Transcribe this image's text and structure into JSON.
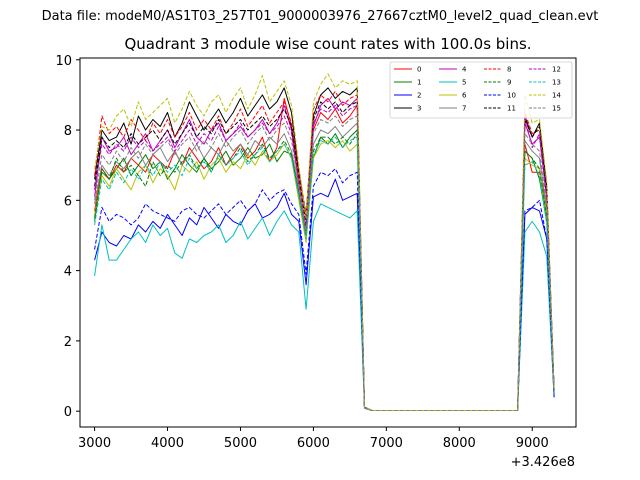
{
  "suptitle": "Data file: modeM0/AS1T03_257T01_9000003976_27667cztM0_level2_quad_clean.evt",
  "offset_text": "+3.426e8",
  "chart_data": {
    "type": "line",
    "title": "Quadrant 3 module wise count rates with 100.0s bins.",
    "xlabel": "",
    "ylabel": "",
    "x_offset": 342600000,
    "xlim": [
      2800,
      9600
    ],
    "ylim": [
      -0.45,
      10.05
    ],
    "xticks": [
      3000,
      4000,
      5000,
      6000,
      7000,
      8000,
      9000
    ],
    "yticks": [
      0,
      2,
      4,
      6,
      8,
      10
    ],
    "grid": false,
    "legend_position": "top-right",
    "x": [
      3000,
      3100,
      3200,
      3300,
      3400,
      3500,
      3600,
      3700,
      3800,
      3900,
      4000,
      4100,
      4200,
      4300,
      4400,
      4500,
      4600,
      4700,
      4800,
      4900,
      5000,
      5100,
      5200,
      5300,
      5400,
      5500,
      5600,
      5700,
      5800,
      5900,
      6000,
      6100,
      6200,
      6300,
      6400,
      6500,
      6600,
      6700,
      6800,
      6900,
      7000,
      7100,
      7200,
      7300,
      7400,
      7500,
      7600,
      7700,
      7800,
      7900,
      8000,
      8100,
      8200,
      8300,
      8400,
      8500,
      8600,
      8700,
      8800,
      8900,
      9000,
      9100,
      9200,
      9300
    ],
    "series": [
      {
        "name": "0",
        "color": "#ff0000",
        "dash": false,
        "values": [
          5.7,
          6.9,
          6.6,
          7.0,
          6.8,
          7.2,
          7.0,
          6.8,
          7.3,
          7.1,
          6.9,
          7.4,
          7.0,
          7.5,
          7.2,
          6.9,
          7.1,
          7.5,
          7.0,
          7.3,
          7.6,
          7.2,
          7.4,
          7.8,
          7.1,
          7.5,
          8.9,
          8.1,
          6.5,
          5.2,
          8.0,
          8.5,
          8.3,
          8.6,
          8.2,
          8.4,
          8.7,
          0.12,
          0.02,
          0.02,
          0.02,
          0.02,
          0.02,
          0.02,
          0.02,
          0.02,
          0.02,
          0.02,
          0.02,
          0.02,
          0.02,
          0.02,
          0.02,
          0.02,
          0.02,
          0.02,
          0.02,
          0.02,
          0.02,
          7.6,
          6.8,
          6.8,
          5.8,
          0.5
        ]
      },
      {
        "name": "1",
        "color": "#008000",
        "dash": false,
        "values": [
          5.4,
          6.8,
          6.6,
          6.9,
          7.2,
          6.7,
          7.0,
          7.3,
          6.9,
          7.1,
          6.6,
          6.9,
          7.3,
          7.0,
          6.8,
          7.2,
          6.9,
          7.1,
          7.4,
          7.0,
          7.2,
          7.5,
          7.2,
          7.3,
          7.6,
          7.1,
          7.4,
          7.3,
          6.2,
          5.0,
          7.2,
          7.8,
          7.6,
          7.9,
          7.5,
          7.8,
          8.0,
          0.1,
          0.02,
          0.02,
          0.02,
          0.02,
          0.02,
          0.02,
          0.02,
          0.02,
          0.02,
          0.02,
          0.02,
          0.02,
          0.02,
          0.02,
          0.02,
          0.02,
          0.02,
          0.02,
          0.02,
          0.02,
          0.02,
          7.4,
          7.2,
          6.6,
          5.4,
          0.5
        ]
      },
      {
        "name": "2",
        "color": "#0000ff",
        "dash": false,
        "values": [
          4.3,
          5.1,
          4.8,
          4.7,
          5.0,
          4.9,
          5.3,
          5.1,
          5.4,
          5.2,
          5.6,
          5.3,
          5.0,
          5.5,
          5.3,
          5.8,
          5.5,
          5.2,
          5.6,
          5.4,
          5.3,
          5.7,
          5.9,
          5.5,
          5.6,
          5.8,
          6.2,
          5.6,
          5.4,
          3.6,
          6.1,
          6.2,
          6.1,
          6.6,
          6.0,
          6.1,
          6.2,
          0.1,
          0.02,
          0.02,
          0.02,
          0.02,
          0.02,
          0.02,
          0.02,
          0.02,
          0.02,
          0.02,
          0.02,
          0.02,
          0.02,
          0.02,
          0.02,
          0.02,
          0.02,
          0.02,
          0.02,
          0.02,
          0.02,
          5.6,
          5.8,
          5.7,
          4.9,
          0.4
        ]
      },
      {
        "name": "3",
        "color": "#000000",
        "dash": false,
        "values": [
          6.6,
          8.0,
          7.7,
          7.8,
          8.2,
          7.6,
          8.4,
          8.0,
          8.3,
          8.1,
          8.5,
          7.8,
          8.2,
          8.8,
          8.4,
          8.0,
          8.3,
          8.6,
          8.2,
          8.5,
          8.9,
          8.4,
          8.7,
          9.0,
          8.6,
          8.8,
          9.2,
          8.5,
          6.8,
          5.6,
          8.4,
          9.0,
          9.2,
          8.9,
          9.1,
          9.0,
          9.2,
          0.1,
          0.02,
          0.02,
          0.02,
          0.02,
          0.02,
          0.02,
          0.02,
          0.02,
          0.02,
          0.02,
          0.02,
          0.02,
          0.02,
          0.02,
          0.02,
          0.02,
          0.02,
          0.02,
          0.02,
          0.02,
          0.02,
          8.4,
          7.8,
          8.2,
          6.4,
          0.6
        ]
      },
      {
        "name": "4",
        "color": "#bf00bf",
        "dash": false,
        "values": [
          6.1,
          7.8,
          7.4,
          7.5,
          7.8,
          7.3,
          7.6,
          7.9,
          7.4,
          7.7,
          8.0,
          7.5,
          7.9,
          8.3,
          7.8,
          7.6,
          8.0,
          8.2,
          7.7,
          7.9,
          8.1,
          7.8,
          8.0,
          8.3,
          7.9,
          8.2,
          8.7,
          8.0,
          6.4,
          5.0,
          8.1,
          8.7,
          8.9,
          8.6,
          8.8,
          8.7,
          8.9,
          0.1,
          0.02,
          0.02,
          0.02,
          0.02,
          0.02,
          0.02,
          0.02,
          0.02,
          0.02,
          0.02,
          0.02,
          0.02,
          0.02,
          0.02,
          0.02,
          0.02,
          0.02,
          0.02,
          0.02,
          0.02,
          0.02,
          8.2,
          7.6,
          7.8,
          6.0,
          0.6
        ]
      },
      {
        "name": "5",
        "color": "#00bfbf",
        "dash": false,
        "values": [
          3.85,
          5.3,
          4.3,
          4.3,
          4.6,
          4.9,
          5.1,
          4.8,
          5.3,
          5.0,
          5.2,
          4.5,
          4.35,
          4.9,
          4.8,
          5.0,
          5.1,
          5.3,
          4.8,
          5.0,
          5.4,
          4.9,
          5.2,
          5.5,
          5.0,
          5.4,
          5.7,
          5.3,
          5.1,
          2.9,
          5.4,
          5.9,
          5.8,
          5.7,
          5.6,
          5.5,
          5.7,
          0.08,
          0.02,
          0.02,
          0.02,
          0.02,
          0.02,
          0.02,
          0.02,
          0.02,
          0.02,
          0.02,
          0.02,
          0.02,
          0.02,
          0.02,
          0.02,
          0.02,
          0.02,
          0.02,
          0.02,
          0.02,
          0.02,
          5.1,
          5.4,
          5.1,
          4.4,
          0.4
        ]
      },
      {
        "name": "6",
        "color": "#bfbf00",
        "dash": false,
        "values": [
          5.6,
          6.7,
          6.4,
          6.9,
          6.6,
          6.3,
          6.8,
          7.0,
          6.5,
          6.9,
          6.7,
          6.3,
          7.0,
          6.8,
          7.1,
          6.6,
          7.0,
          7.2,
          6.8,
          7.1,
          6.9,
          7.3,
          7.0,
          7.4,
          7.1,
          7.3,
          7.6,
          7.2,
          6.0,
          4.8,
          7.2,
          7.6,
          7.7,
          7.5,
          7.7,
          7.4,
          7.6,
          0.1,
          0.02,
          0.02,
          0.02,
          0.02,
          0.02,
          0.02,
          0.02,
          0.02,
          0.02,
          0.02,
          0.02,
          0.02,
          0.02,
          0.02,
          0.02,
          0.02,
          0.02,
          0.02,
          0.02,
          0.02,
          0.02,
          7.2,
          7.0,
          6.9,
          5.5,
          0.5
        ]
      },
      {
        "name": "7",
        "color": "#808080",
        "dash": false,
        "values": [
          5.9,
          7.0,
          6.7,
          7.1,
          6.9,
          7.2,
          7.4,
          7.0,
          7.3,
          7.5,
          7.1,
          7.4,
          7.0,
          7.3,
          7.6,
          7.2,
          7.5,
          7.3,
          7.7,
          7.4,
          7.6,
          7.3,
          7.7,
          7.5,
          7.8,
          7.6,
          7.9,
          7.4,
          6.3,
          5.1,
          7.6,
          8.0,
          7.9,
          8.1,
          7.8,
          8.0,
          8.2,
          0.1,
          0.02,
          0.02,
          0.02,
          0.02,
          0.02,
          0.02,
          0.02,
          0.02,
          0.02,
          0.02,
          0.02,
          0.02,
          0.02,
          0.02,
          0.02,
          0.02,
          0.02,
          0.02,
          0.02,
          0.02,
          0.02,
          7.7,
          7.4,
          7.2,
          5.7,
          0.5
        ]
      },
      {
        "name": "8",
        "color": "#ff0000",
        "dash": true,
        "values": [
          6.7,
          8.4,
          7.9,
          8.1,
          7.8,
          8.3,
          8.0,
          7.7,
          8.2,
          7.9,
          8.3,
          7.8,
          8.1,
          8.5,
          8.0,
          8.3,
          8.0,
          8.4,
          7.9,
          8.2,
          8.6,
          8.1,
          8.4,
          8.7,
          8.2,
          8.5,
          8.8,
          8.2,
          6.8,
          5.5,
          8.6,
          9.0,
          8.8,
          9.1,
          8.7,
          8.9,
          9.0,
          0.12,
          0.02,
          0.02,
          0.02,
          0.02,
          0.02,
          0.02,
          0.02,
          0.02,
          0.02,
          0.02,
          0.02,
          0.02,
          0.02,
          0.02,
          0.02,
          0.02,
          0.02,
          0.02,
          0.02,
          0.02,
          0.02,
          8.5,
          7.9,
          8.0,
          6.2,
          0.6
        ]
      },
      {
        "name": "9",
        "color": "#008000",
        "dash": true,
        "values": [
          5.5,
          6.9,
          6.6,
          7.2,
          6.8,
          7.0,
          6.7,
          6.4,
          7.1,
          6.7,
          7.0,
          6.8,
          7.1,
          7.3,
          6.9,
          7.2,
          6.8,
          7.3,
          7.0,
          7.2,
          7.5,
          7.1,
          7.3,
          7.6,
          7.2,
          7.4,
          7.7,
          7.3,
          6.2,
          5.0,
          7.4,
          7.8,
          7.8,
          7.6,
          7.8,
          7.6,
          7.9,
          0.1,
          0.02,
          0.02,
          0.02,
          0.02,
          0.02,
          0.02,
          0.02,
          0.02,
          0.02,
          0.02,
          0.02,
          0.02,
          0.02,
          0.02,
          0.02,
          0.02,
          0.02,
          0.02,
          0.02,
          0.02,
          0.02,
          7.4,
          7.2,
          6.9,
          5.5,
          0.5
        ]
      },
      {
        "name": "10",
        "color": "#0000ff",
        "dash": true,
        "values": [
          4.6,
          5.8,
          5.4,
          5.6,
          5.5,
          5.3,
          5.5,
          5.9,
          5.7,
          5.6,
          5.5,
          5.4,
          5.7,
          5.8,
          5.6,
          5.5,
          5.7,
          5.9,
          5.6,
          5.8,
          6.0,
          5.7,
          5.9,
          6.3,
          6.0,
          6.2,
          6.3,
          5.9,
          5.6,
          3.9,
          6.4,
          6.8,
          6.7,
          6.9,
          6.5,
          6.7,
          6.8,
          0.1,
          0.02,
          0.02,
          0.02,
          0.02,
          0.02,
          0.02,
          0.02,
          0.02,
          0.02,
          0.02,
          0.02,
          0.02,
          0.02,
          0.02,
          0.02,
          0.02,
          0.02,
          0.02,
          0.02,
          0.02,
          0.02,
          5.7,
          5.8,
          6.0,
          4.9,
          0.4
        ]
      },
      {
        "name": "11",
        "color": "#000000",
        "dash": true,
        "values": [
          6.4,
          7.8,
          7.5,
          7.7,
          7.5,
          7.9,
          7.6,
          7.8,
          8.0,
          7.7,
          8.0,
          7.6,
          7.9,
          8.2,
          7.8,
          8.1,
          7.9,
          8.3,
          7.9,
          8.1,
          8.3,
          8.0,
          8.2,
          8.4,
          8.1,
          8.3,
          8.6,
          8.1,
          6.7,
          5.3,
          8.3,
          8.8,
          8.6,
          8.8,
          8.5,
          8.7,
          8.8,
          0.1,
          0.02,
          0.02,
          0.02,
          0.02,
          0.02,
          0.02,
          0.02,
          0.02,
          0.02,
          0.02,
          0.02,
          0.02,
          0.02,
          0.02,
          0.02,
          0.02,
          0.02,
          0.02,
          0.02,
          0.02,
          0.02,
          8.3,
          7.8,
          8.1,
          6.2,
          0.6
        ]
      },
      {
        "name": "12",
        "color": "#bf00bf",
        "dash": true,
        "values": [
          6.3,
          7.6,
          7.3,
          7.6,
          7.4,
          7.8,
          7.5,
          7.7,
          7.4,
          7.6,
          7.8,
          7.4,
          7.7,
          8.0,
          7.6,
          7.9,
          7.7,
          8.1,
          7.7,
          7.9,
          8.2,
          7.8,
          8.0,
          8.2,
          7.9,
          8.1,
          8.4,
          7.9,
          6.5,
          5.2,
          8.2,
          8.6,
          8.5,
          8.7,
          8.4,
          8.6,
          8.7,
          0.1,
          0.02,
          0.02,
          0.02,
          0.02,
          0.02,
          0.02,
          0.02,
          0.02,
          0.02,
          0.02,
          0.02,
          0.02,
          0.02,
          0.02,
          0.02,
          0.02,
          0.02,
          0.02,
          0.02,
          0.02,
          0.02,
          8.4,
          7.5,
          7.9,
          6.1,
          0.6
        ]
      },
      {
        "name": "13",
        "color": "#00bfbf",
        "dash": true,
        "values": [
          5.3,
          6.6,
          6.3,
          6.8,
          6.5,
          6.9,
          6.6,
          7.0,
          6.7,
          7.1,
          6.8,
          7.0,
          6.7,
          7.2,
          6.9,
          7.1,
          6.8,
          7.3,
          7.0,
          7.2,
          7.4,
          7.0,
          7.3,
          7.5,
          7.1,
          7.4,
          7.6,
          7.2,
          6.1,
          4.9,
          7.3,
          7.7,
          7.6,
          7.8,
          7.5,
          7.7,
          7.8,
          0.1,
          0.02,
          0.02,
          0.02,
          0.02,
          0.02,
          0.02,
          0.02,
          0.02,
          0.02,
          0.02,
          0.02,
          0.02,
          0.02,
          0.02,
          0.02,
          0.02,
          0.02,
          0.02,
          0.02,
          0.02,
          0.02,
          7.0,
          7.1,
          6.7,
          5.3,
          0.5
        ]
      },
      {
        "name": "14",
        "color": "#bfbf00",
        "dash": true,
        "values": [
          6.9,
          8.1,
          8.0,
          8.4,
          8.6,
          8.1,
          8.8,
          8.3,
          8.5,
          8.7,
          8.9,
          8.2,
          8.6,
          9.1,
          8.7,
          8.4,
          8.8,
          9.0,
          8.5,
          8.9,
          9.2,
          8.6,
          9.0,
          9.55,
          8.8,
          9.1,
          9.4,
          8.7,
          7.0,
          5.5,
          8.8,
          9.3,
          9.6,
          9.2,
          9.4,
          9.3,
          9.4,
          0.12,
          0.02,
          0.02,
          0.02,
          0.02,
          0.02,
          0.02,
          0.02,
          0.02,
          0.02,
          0.02,
          0.02,
          0.02,
          0.02,
          0.02,
          0.02,
          0.02,
          0.02,
          0.02,
          0.02,
          0.02,
          0.02,
          9.0,
          8.2,
          8.3,
          6.5,
          0.6
        ]
      },
      {
        "name": "15",
        "color": "#808080",
        "dash": true,
        "values": [
          6.0,
          7.3,
          7.0,
          7.4,
          7.1,
          7.5,
          7.2,
          7.6,
          7.3,
          7.5,
          7.7,
          7.3,
          7.6,
          7.8,
          7.4,
          7.7,
          7.5,
          7.9,
          7.5,
          7.8,
          8.0,
          7.6,
          7.9,
          8.1,
          7.7,
          8.0,
          8.2,
          7.7,
          6.4,
          5.1,
          7.9,
          8.3,
          8.2,
          8.4,
          8.1,
          8.3,
          8.4,
          0.1,
          0.02,
          0.02,
          0.02,
          0.02,
          0.02,
          0.02,
          0.02,
          0.02,
          0.02,
          0.02,
          0.02,
          0.02,
          0.02,
          0.02,
          0.02,
          0.02,
          0.02,
          0.02,
          0.02,
          0.02,
          0.02,
          7.9,
          7.6,
          7.4,
          5.8,
          0.5
        ]
      }
    ]
  }
}
